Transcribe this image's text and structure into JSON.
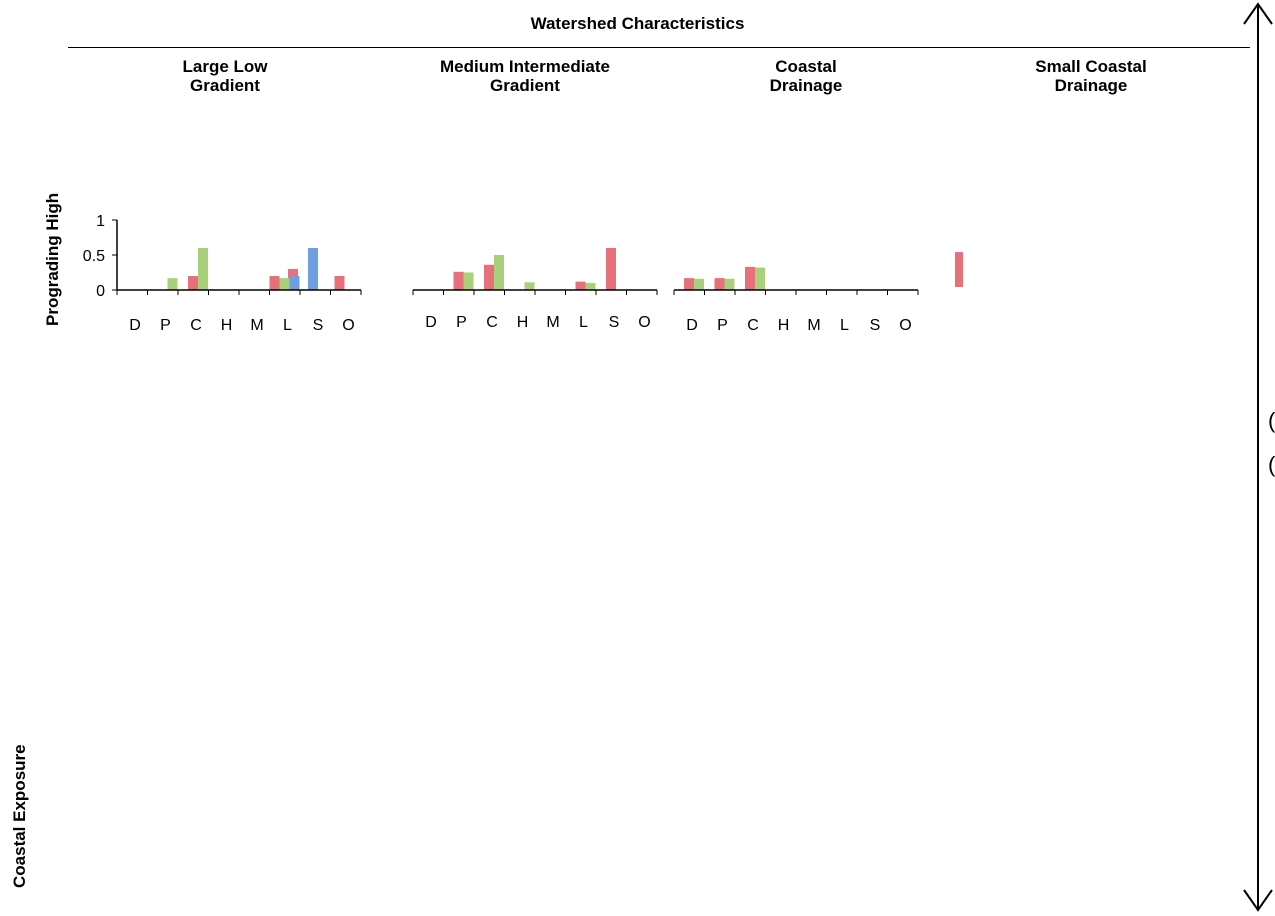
{
  "title": "Watershed Characteristics",
  "columns": [
    {
      "label": "Large Low\nGradient"
    },
    {
      "label": "Medium Intermediate\nGradient"
    },
    {
      "label": "Coastal\nDrainage"
    },
    {
      "label": "Small Coastal\nDrainage"
    }
  ],
  "rows": [
    {
      "label": "Prograding High"
    },
    {
      "label": "Coastal Exposure"
    }
  ],
  "colors": {
    "red": "#e8707a",
    "green": "#a9d07a",
    "blue": "#6f9fe0"
  },
  "chart_data": [
    {
      "type": "bar",
      "categories": [
        "D",
        "P",
        "C",
        "H",
        "M",
        "L",
        "S",
        "O"
      ],
      "ylim": [
        0,
        1
      ],
      "yticks": [
        1,
        0.5,
        0
      ],
      "ytick_labels": [
        "1",
        "0.5",
        "0"
      ],
      "series": [
        {
          "color": "red",
          "values": [
            0,
            0,
            0.2,
            0,
            0,
            0.2,
            0.3,
            0.2
          ]
        },
        {
          "color": "green",
          "values": [
            0,
            0.17,
            0.6,
            0,
            0,
            0.17,
            0,
            0
          ]
        },
        {
          "color": "blue",
          "values": [
            0,
            0,
            0,
            0,
            0,
            0.2,
            0.6,
            0
          ]
        }
      ]
    },
    {
      "type": "bar",
      "categories": [
        "D",
        "P",
        "C",
        "H",
        "M",
        "L",
        "S",
        "O"
      ],
      "ylim": [
        0,
        1
      ],
      "series": [
        {
          "color": "red",
          "values": [
            0,
            0.26,
            0.36,
            0,
            0,
            0.12,
            0.6,
            0
          ]
        },
        {
          "color": "green",
          "values": [
            0,
            0.25,
            0.5,
            0.11,
            0,
            0.1,
            0,
            0
          ]
        }
      ]
    },
    {
      "type": "bar",
      "categories": [
        "D",
        "P",
        "C",
        "H",
        "M",
        "L",
        "S",
        "O"
      ],
      "ylim": [
        0,
        1
      ],
      "series": [
        {
          "color": "red",
          "values": [
            0.17,
            0.17,
            0.33,
            0,
            0,
            0,
            0,
            0
          ]
        },
        {
          "color": "green",
          "values": [
            0.16,
            0.16,
            0.32,
            0,
            0,
            0,
            0,
            0
          ]
        }
      ]
    },
    {
      "type": "bar",
      "categories": [
        ""
      ],
      "ylim": [
        0,
        1
      ],
      "series": [
        {
          "color": "red",
          "values": [
            0.5
          ]
        }
      ]
    }
  ]
}
